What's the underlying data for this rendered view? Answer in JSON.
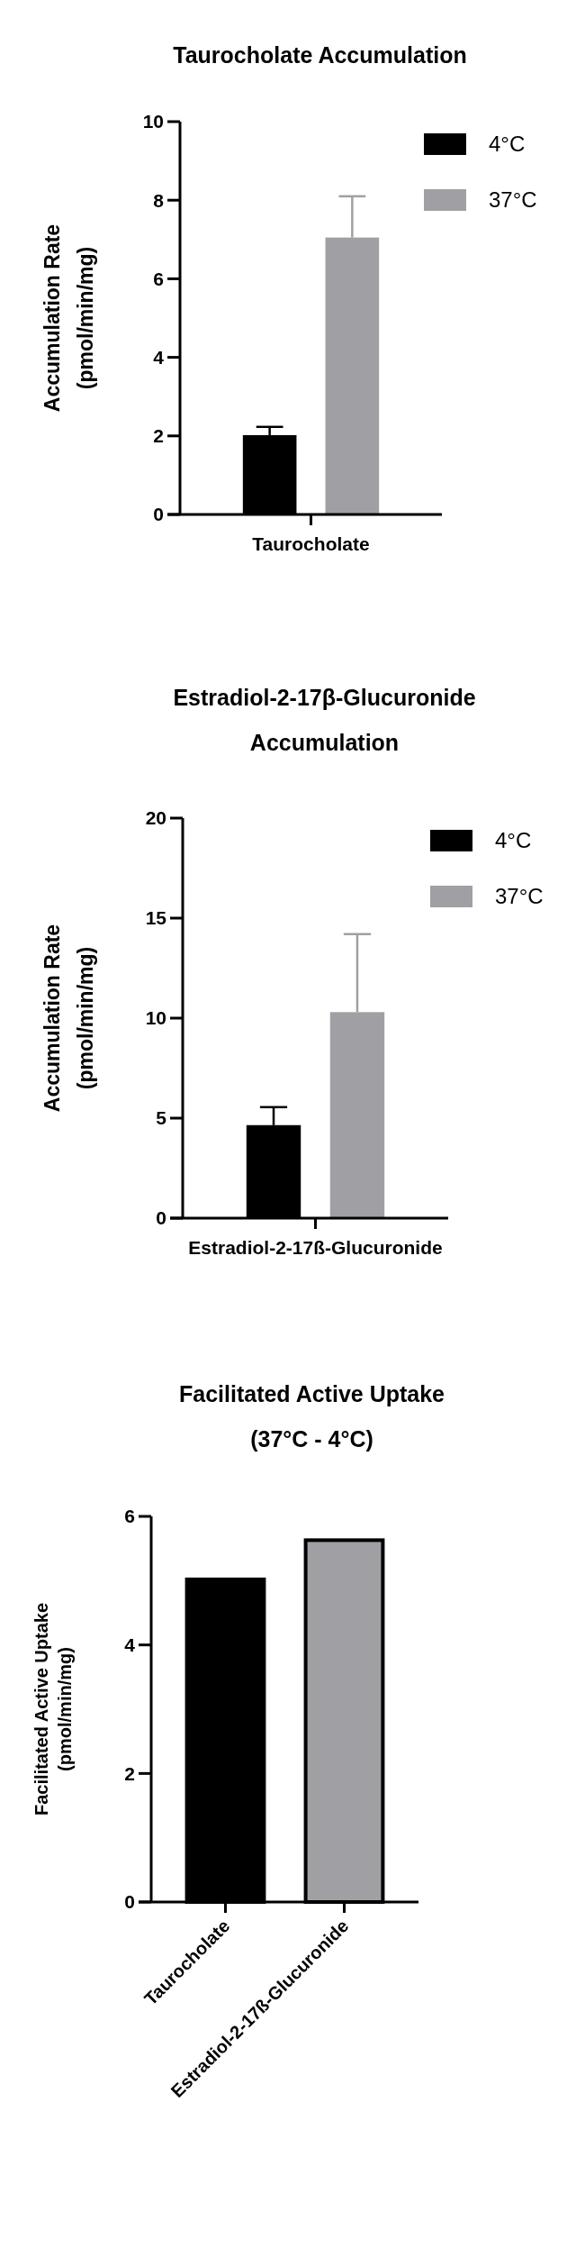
{
  "chart_data": [
    {
      "type": "bar",
      "title": "Taurocholate Accumulation",
      "ylabel": "Accumulation Rate\n(pmol/min/mg)",
      "categories": [
        "Taurocholate"
      ],
      "ylim": [
        0,
        10
      ],
      "yticks": [
        0,
        2,
        4,
        6,
        8,
        10
      ],
      "legend": "top right",
      "series": [
        {
          "name": "4°C",
          "color": "#000000",
          "values": [
            2.02
          ],
          "errors": [
            [
              2.02,
              2.23
            ]
          ]
        },
        {
          "name": "37°C",
          "color": "#a0a0a4",
          "values": [
            7.05
          ],
          "errors": [
            [
              7.05,
              8.1
            ]
          ]
        }
      ]
    },
    {
      "type": "bar",
      "title": "Estradiol-2-17β-Glucuronide\nAccumulation",
      "ylabel": "Accumulation Rate\n(pmol/min/mg)",
      "categories": [
        "Estradiol-2-17ß-Glucuronide"
      ],
      "ylim": [
        0,
        20
      ],
      "yticks": [
        0,
        5,
        10,
        15,
        20
      ],
      "legend": "top right",
      "series": [
        {
          "name": "4°C",
          "color": "#000000",
          "values": [
            4.65
          ],
          "errors": [
            [
              4.65,
              5.55
            ]
          ]
        },
        {
          "name": "37°C",
          "color": "#a0a0a4",
          "values": [
            10.3
          ],
          "errors": [
            [
              10.3,
              14.2
            ]
          ]
        }
      ]
    },
    {
      "type": "bar",
      "title": "Facilitated Active Uptake\n(37°C - 4°C)",
      "ylabel": "Facilitated Active Uptake\n(pmol/min/mg)",
      "categories": [
        "Taurocholate",
        "Estradiol-2-17ß-Glucuronide"
      ],
      "ylim": [
        0,
        6
      ],
      "yticks": [
        0,
        2,
        4,
        6
      ],
      "values": [
        5.02,
        5.63
      ],
      "colors": [
        "#000000",
        "#a0a0a4"
      ]
    }
  ]
}
